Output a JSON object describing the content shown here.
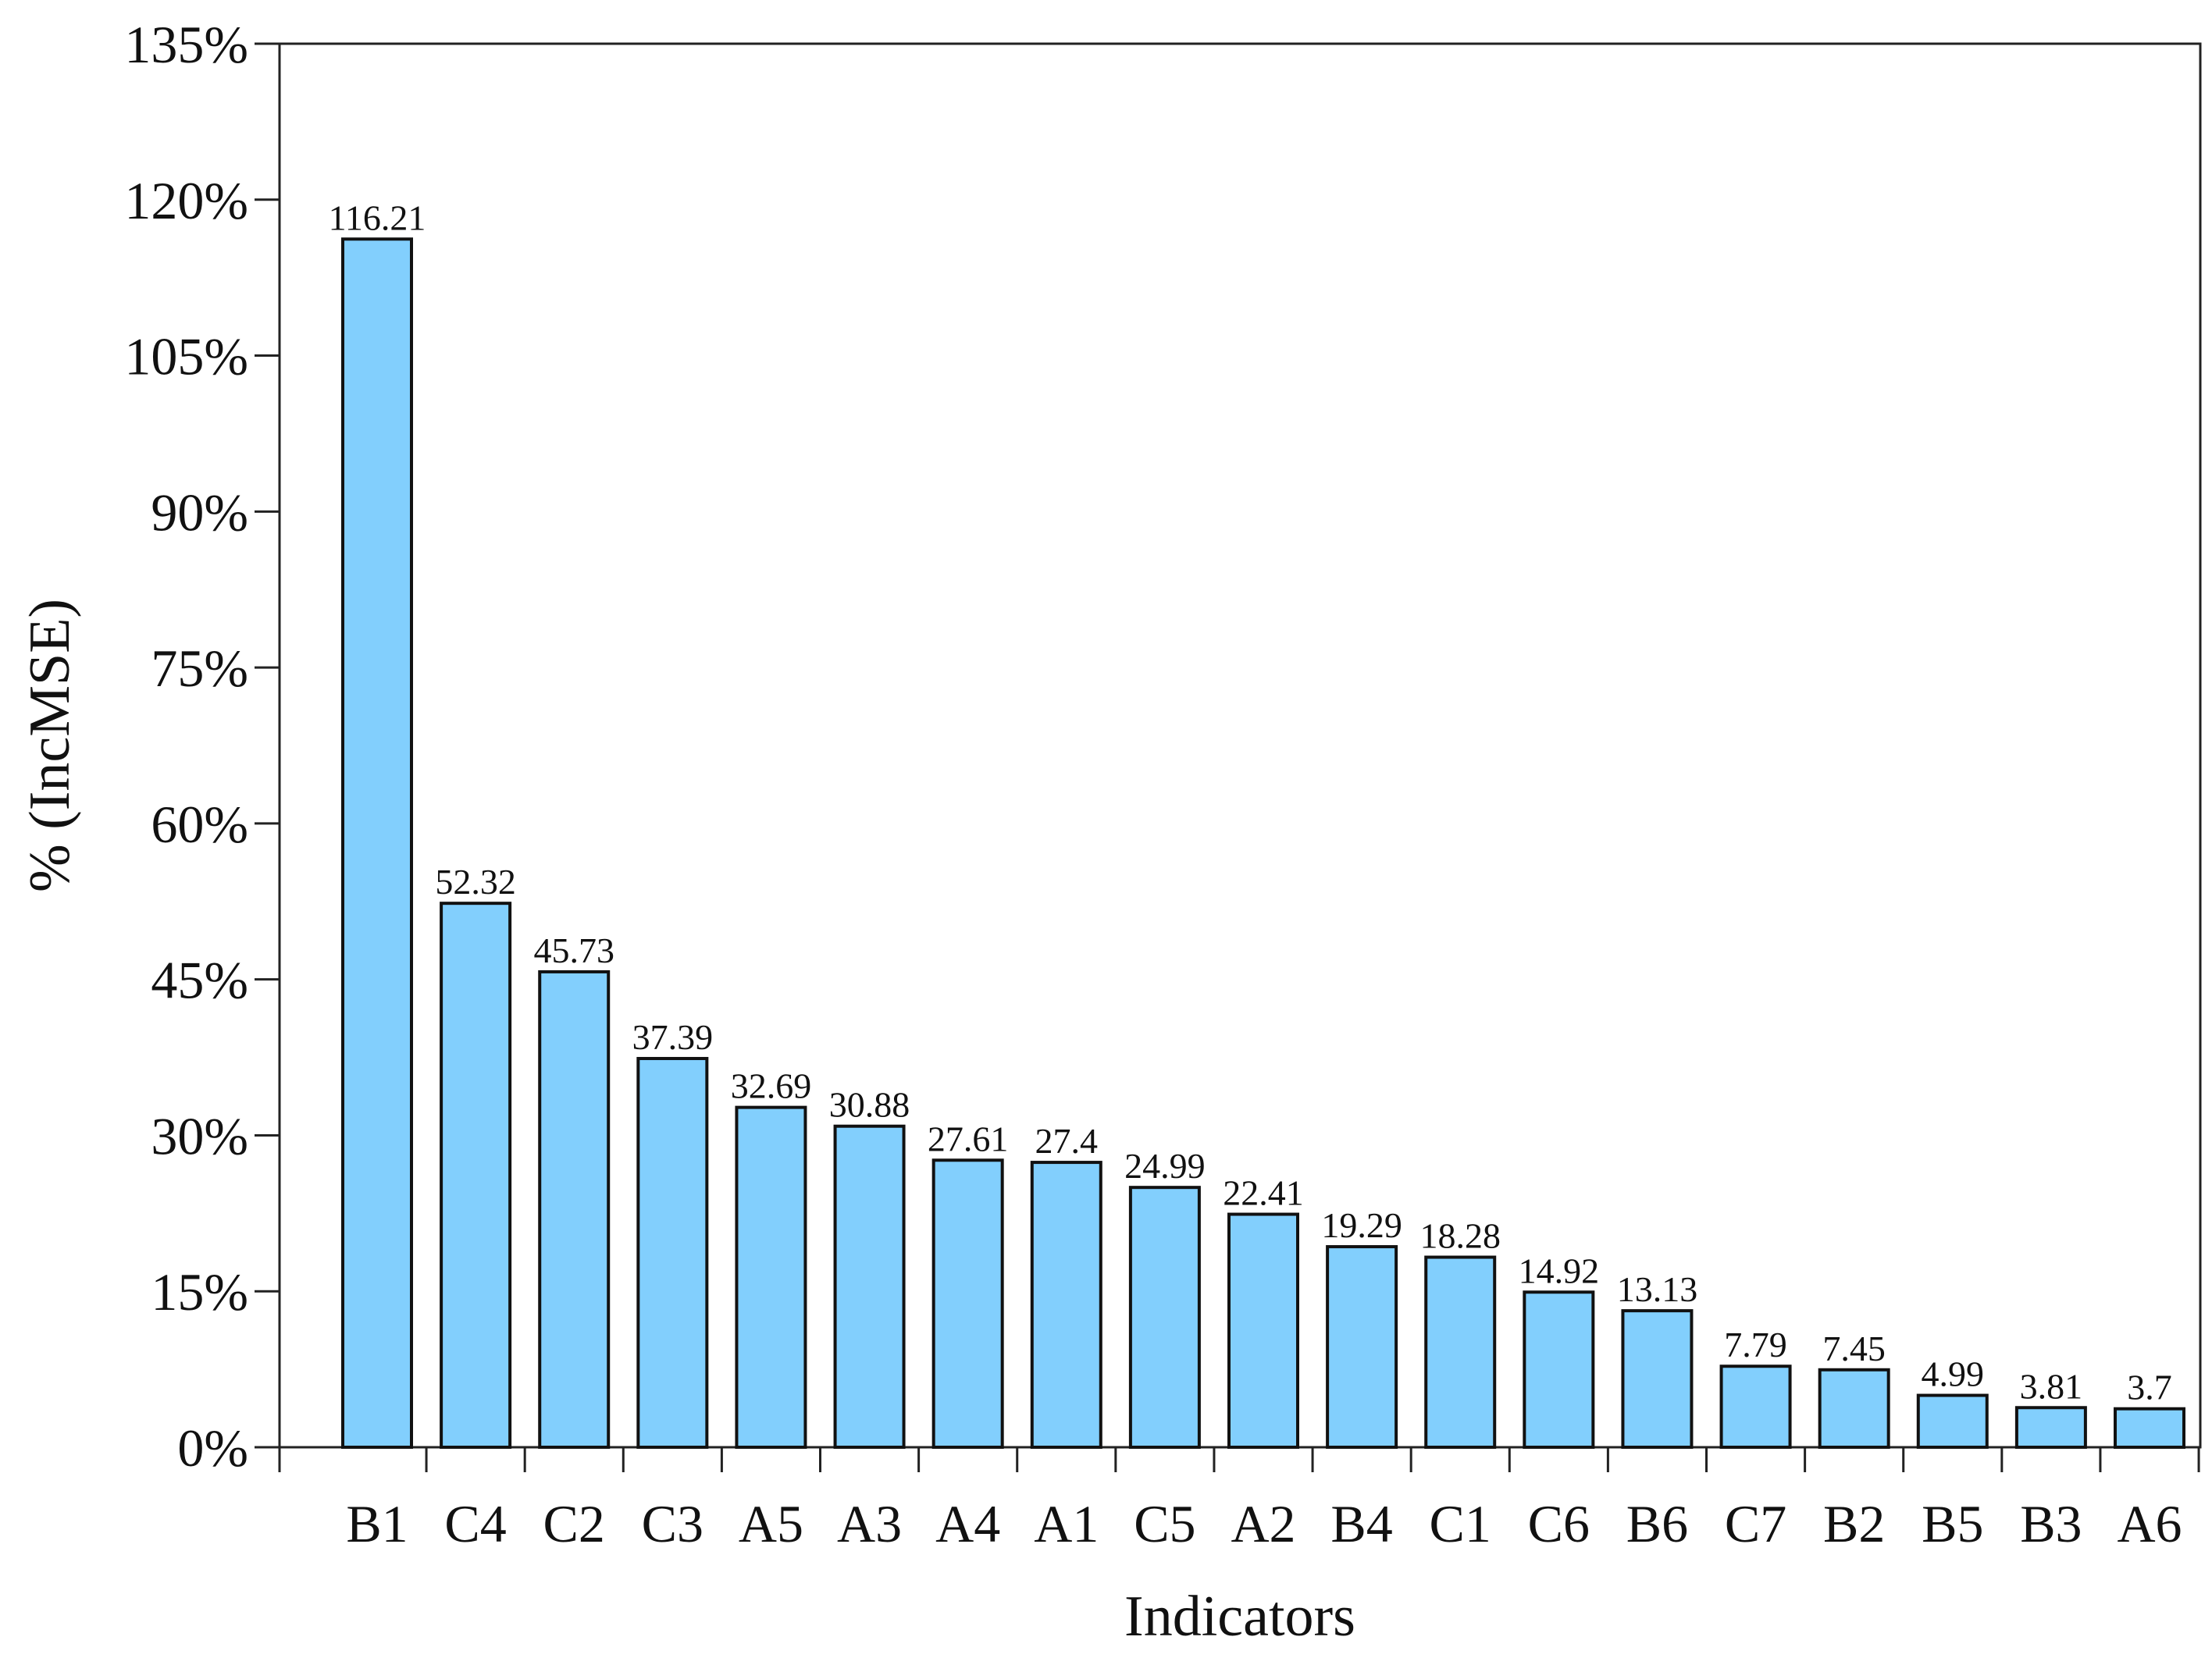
{
  "chart_data": {
    "type": "bar",
    "title": "",
    "xlabel": "Indicators",
    "ylabel": "% (IncMSE)",
    "ylim": [
      0,
      135
    ],
    "ytick_values": [
      0,
      15,
      30,
      45,
      60,
      75,
      90,
      105,
      120,
      135
    ],
    "ytick_labels": [
      "0%",
      "15%",
      "30%",
      "45%",
      "60%",
      "75%",
      "90%",
      "105%",
      "120%",
      "135%"
    ],
    "categories": [
      "B1",
      "C4",
      "C2",
      "C3",
      "A5",
      "A3",
      "A4",
      "A1",
      "C5",
      "A2",
      "B4",
      "C1",
      "C6",
      "B6",
      "C7",
      "B2",
      "B5",
      "B3",
      "A6"
    ],
    "values": [
      116.21,
      52.32,
      45.73,
      37.39,
      32.69,
      30.88,
      27.61,
      27.4,
      24.99,
      22.41,
      19.29,
      18.28,
      14.92,
      13.13,
      7.79,
      7.45,
      4.99,
      3.81,
      3.7
    ],
    "value_labels": [
      "116.21",
      "52.32",
      "45.73",
      "37.39",
      "32.69",
      "30.88",
      "27.61",
      "27.4",
      "24.99",
      "22.41",
      "19.29",
      "18.28",
      "14.92",
      "13.13",
      "7.79",
      "7.45",
      "4.99",
      "3.81",
      "3.7"
    ],
    "bar_color": "#82CFFD",
    "grid": false,
    "legend": "none"
  }
}
